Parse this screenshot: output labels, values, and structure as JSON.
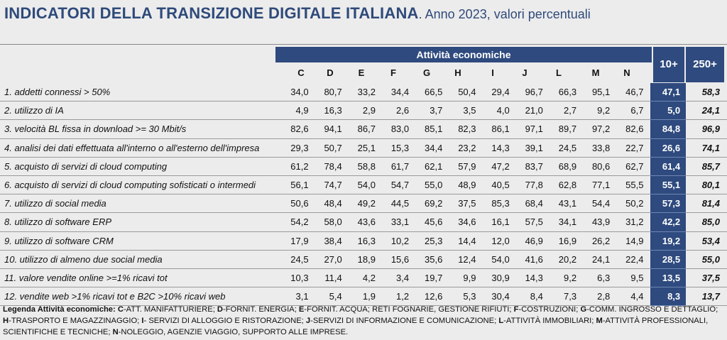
{
  "title": {
    "main": "INDICATORI DELLA TRANSIZIONE DIGITALE ITALIANA",
    "sub": ". Anno 2023, valori percentuali"
  },
  "header": {
    "group_label": "Attività economiche",
    "columns": [
      "C",
      "D",
      "E",
      "F",
      "G",
      "H",
      "I",
      "J",
      "L",
      "M",
      "N"
    ],
    "col_10": "10+",
    "col_250": "250+"
  },
  "rows": [
    {
      "label": "1. addetti connessi > 50%",
      "values": [
        "34,0",
        "80,7",
        "33,2",
        "34,4",
        "66,5",
        "50,4",
        "29,4",
        "96,7",
        "66,3",
        "95,1",
        "46,7"
      ],
      "t10": "47,1",
      "t250": "58,3"
    },
    {
      "label": "2. utilizzo di IA",
      "values": [
        "4,9",
        "16,3",
        "2,9",
        "2,6",
        "3,7",
        "3,5",
        "4,0",
        "21,0",
        "2,7",
        "9,2",
        "6,7"
      ],
      "t10": "5,0",
      "t250": "24,1"
    },
    {
      "label": "3. velocità BL fissa in download >= 30 Mbit/s",
      "values": [
        "82,6",
        "94,1",
        "86,7",
        "83,0",
        "85,1",
        "82,3",
        "86,1",
        "97,1",
        "89,7",
        "97,2",
        "82,6"
      ],
      "t10": "84,8",
      "t250": "96,9"
    },
    {
      "label": "4. analisi dei dati effettuata all'interno o all'esterno dell'impresa",
      "values": [
        "29,3",
        "50,7",
        "25,1",
        "15,3",
        "34,4",
        "23,2",
        "14,3",
        "39,1",
        "24,5",
        "33,8",
        "22,7"
      ],
      "t10": "26,6",
      "t250": "74,1"
    },
    {
      "label": "5. acquisto di servizi di cloud computing",
      "values": [
        "61,2",
        "78,4",
        "58,8",
        "61,7",
        "62,1",
        "57,9",
        "47,2",
        "83,7",
        "68,9",
        "80,6",
        "62,7"
      ],
      "t10": "61,4",
      "t250": "85,7"
    },
    {
      "label": "6. acquisto di servizi di cloud computing sofisticati o intermedi",
      "values": [
        "56,1",
        "74,7",
        "54,0",
        "54,7",
        "55,0",
        "48,9",
        "40,5",
        "77,8",
        "62,8",
        "77,1",
        "55,5"
      ],
      "t10": "55,1",
      "t250": "80,1"
    },
    {
      "label": "7. utilizzo di social media",
      "values": [
        "50,6",
        "48,4",
        "49,2",
        "44,5",
        "69,2",
        "37,5",
        "85,3",
        "68,4",
        "43,1",
        "54,4",
        "50,2"
      ],
      "t10": "57,3",
      "t250": "81,4"
    },
    {
      "label": "8. utilizzo di software ERP",
      "values": [
        "54,2",
        "58,0",
        "43,6",
        "33,1",
        "45,6",
        "34,6",
        "16,1",
        "57,5",
        "34,1",
        "43,9",
        "31,2"
      ],
      "t10": "42,2",
      "t250": "85,0"
    },
    {
      "label": "9. utilizzo di software CRM",
      "values": [
        "17,9",
        "38,4",
        "16,3",
        "10,2",
        "25,3",
        "14,4",
        "12,0",
        "46,9",
        "16,9",
        "26,2",
        "14,9"
      ],
      "t10": "19,2",
      "t250": "53,4"
    },
    {
      "label": "10.  utilizzo di almeno due social media",
      "values": [
        "24,5",
        "27,0",
        "18,9",
        "15,6",
        "35,6",
        "12,4",
        "54,0",
        "41,6",
        "20,2",
        "24,1",
        "22,4"
      ],
      "t10": "28,5",
      "t250": "55,0"
    },
    {
      "label": "11. valore vendite online >=1% ricavi tot",
      "values": [
        "10,3",
        "11,4",
        "4,2",
        "3,4",
        "19,7",
        "9,9",
        "30,9",
        "14,3",
        "9,2",
        "6,3",
        "9,5"
      ],
      "t10": "13,5",
      "t250": "37,5"
    },
    {
      "label": "12. vendite web >1% ricavi tot e  B2C >10% ricavi web",
      "values": [
        "3,1",
        "5,4",
        "1,9",
        "1,2",
        "12,6",
        "5,3",
        "30,4",
        "8,4",
        "7,3",
        "2,8",
        "4,4"
      ],
      "t10": "8,3",
      "t250": "13,7"
    }
  ],
  "legend": {
    "heading": "Legenda Attività economiche: ",
    "items": [
      {
        "k": "C",
        "v": "-ATT. MANIFATTURIERE; "
      },
      {
        "k": "D",
        "v": "-FORNIT. ENERGIA; "
      },
      {
        "k": "E",
        "v": "-FORNIT. ACQUA; RETI FOGNARIE, GESTIONE RIFIUTI; "
      },
      {
        "k": "F",
        "v": "-COSTRUZIONI; "
      },
      {
        "k": "G",
        "v": "-COMM. INGROSSO E DETTAGLIO; "
      },
      {
        "k": "H",
        "v": "-TRASPORTO E MAGAZZINAGGIO; "
      },
      {
        "k": "I",
        "v": "- SERVIZI DI ALLOGGIO E RISTORAZIONE; "
      },
      {
        "k": "J",
        "v": "-SERVIZI DI INFORMAZIONE E COMUNICAZIONE; "
      },
      {
        "k": "L",
        "v": "-ATTIVITÀ IMMOBILIARI; "
      },
      {
        "k": "M",
        "v": "-ATTIVITÀ PROFESSIONALI, SCIENTIFICHE E TECNICHE; "
      },
      {
        "k": "N",
        "v": "-NOLEGGIO, AGENZIE VIAGGIO, SUPPORTO ALLE IMPRESE."
      }
    ]
  }
}
